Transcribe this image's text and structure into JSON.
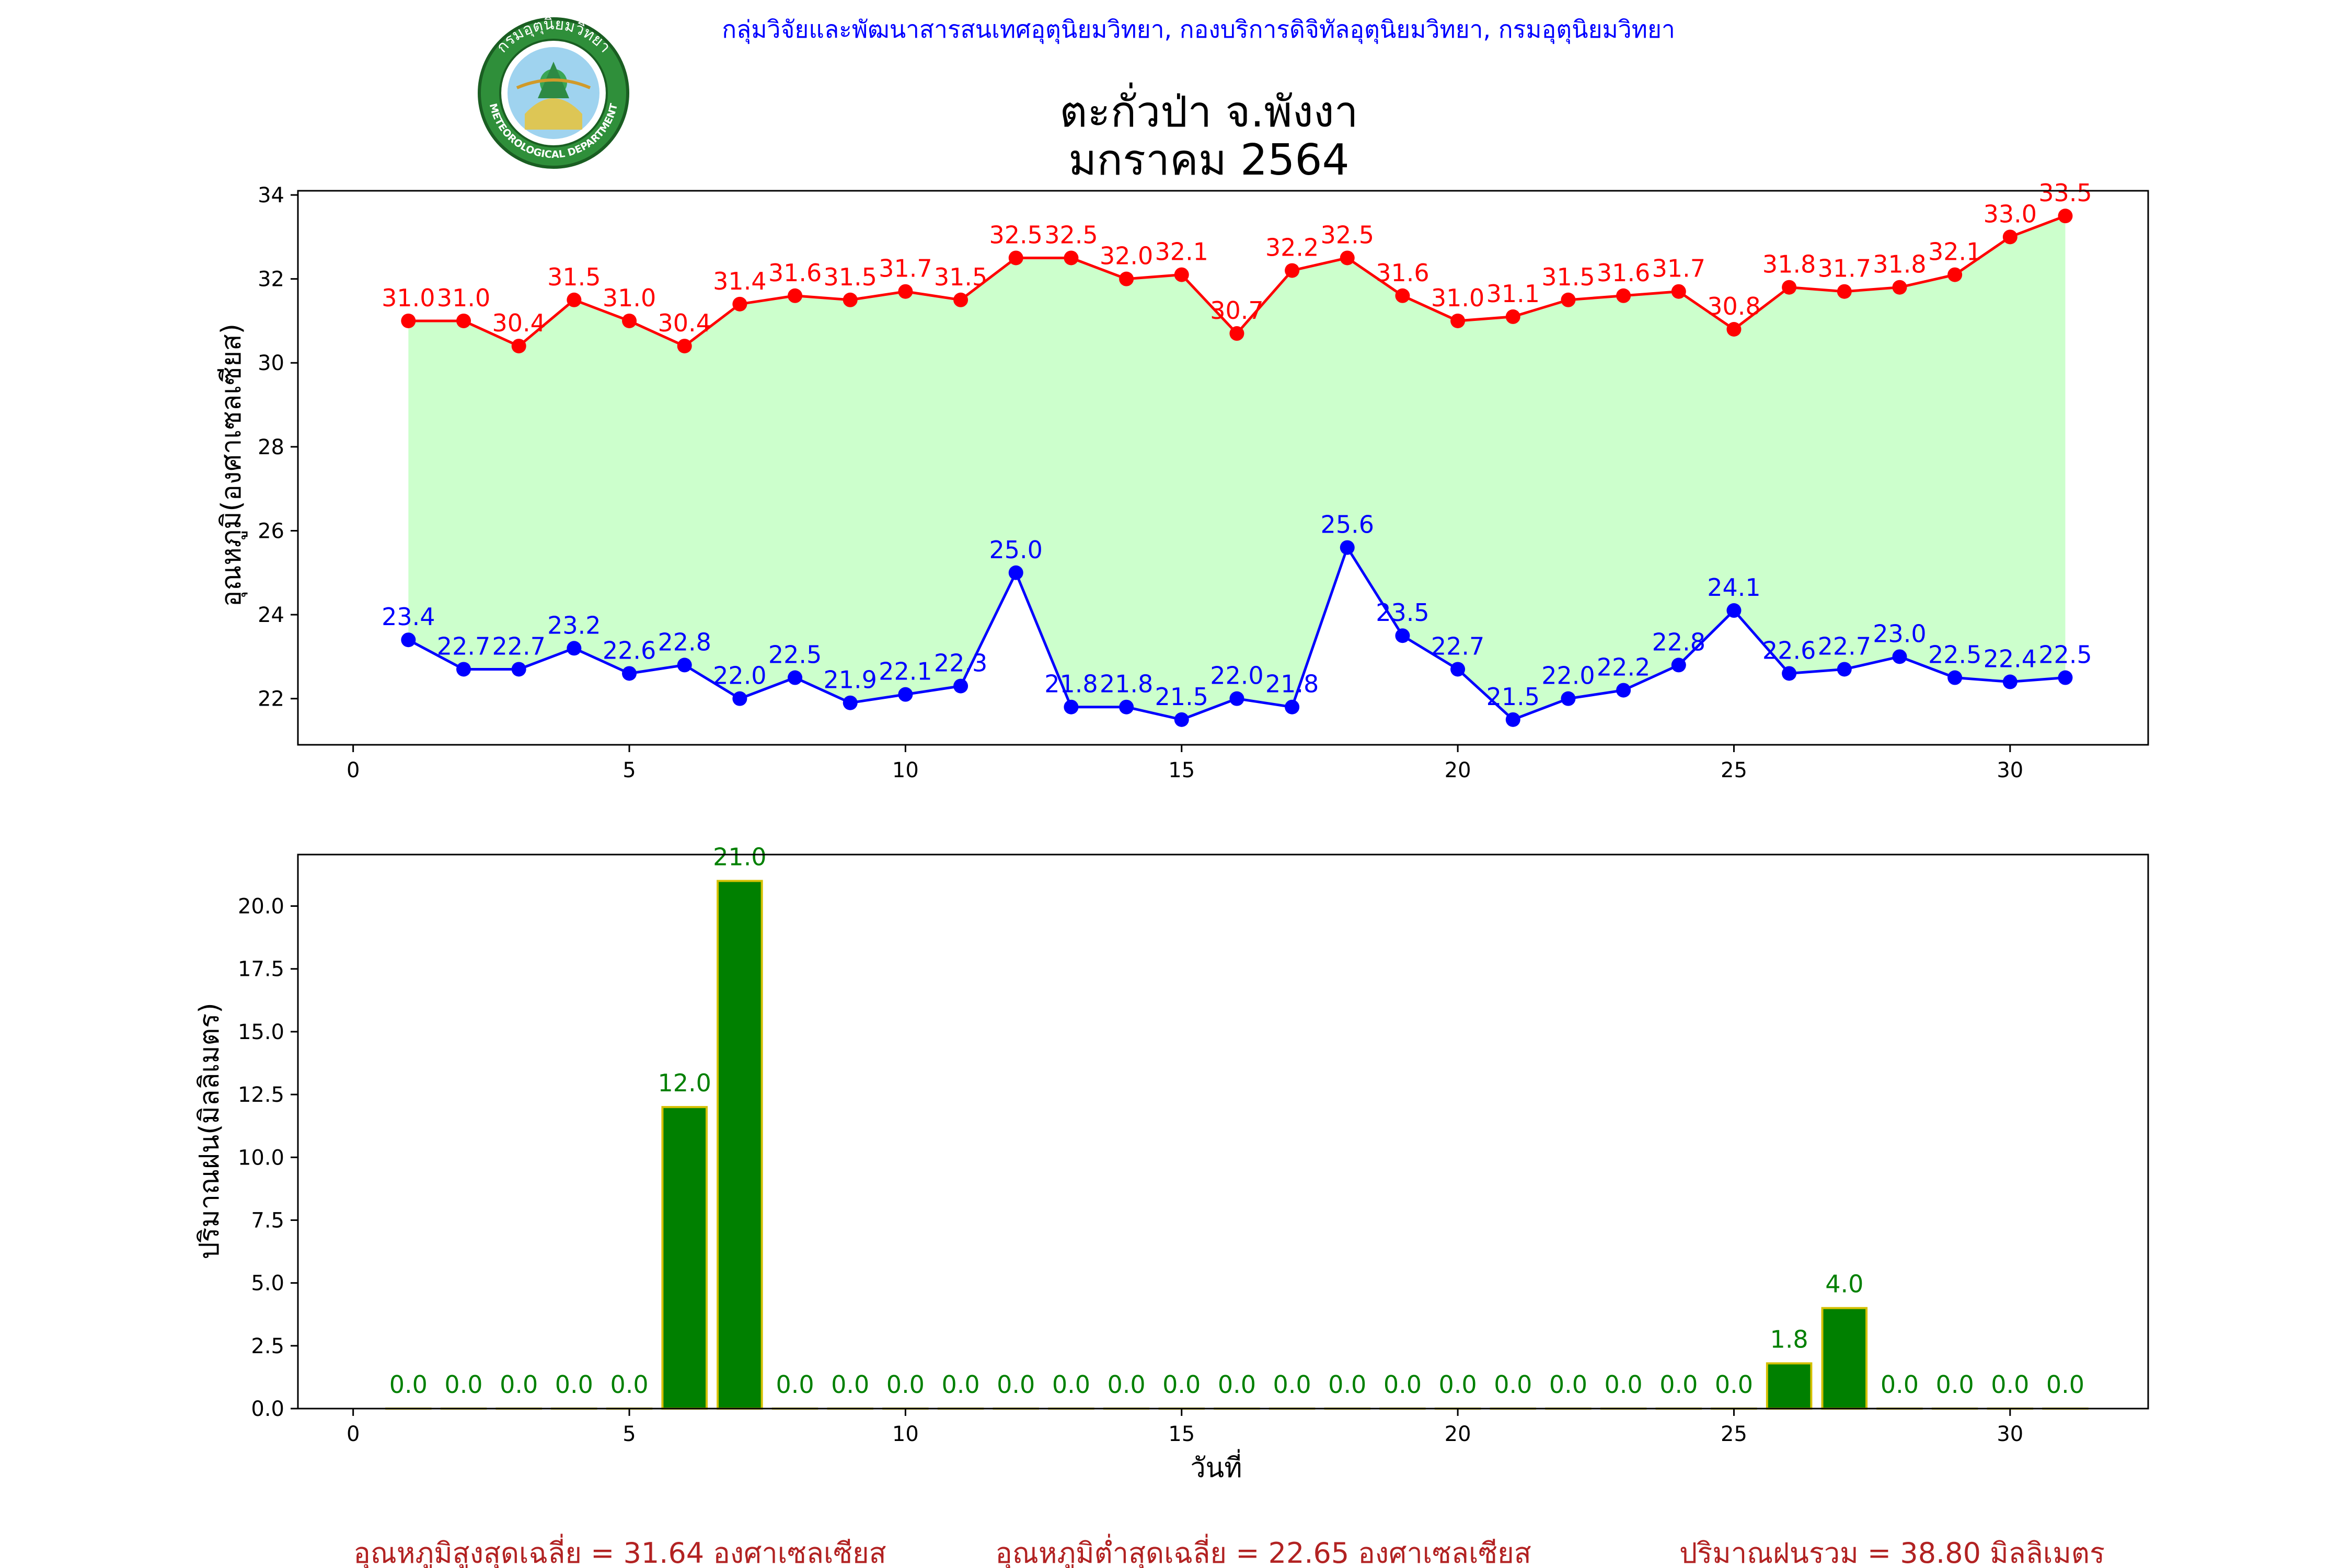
{
  "header": {
    "organization": "กลุ่มวิจัยและพัฒนาสารสนเทศอุตุนิยมวิทยา, กองบริการดิจิทัลอุตุนิยมวิทยา, กรมอุตุนิยมวิทยา",
    "station": "ตะกั่วป่า จ.พังงา",
    "period": "มกราคม 2564",
    "logo": {
      "top_text": "กรมอุตุนิยมวิทยา",
      "bottom_text": "METEOROLOGICAL DEPARTMENT"
    }
  },
  "colors": {
    "max": "#ff0000",
    "min": "#0000ff",
    "fill": "#ccffcc",
    "rain": "#008000",
    "rain_edge": "#d4c000",
    "header": "#0000ff",
    "summary": "#b22222"
  },
  "chart_data": [
    {
      "type": "line",
      "ylabel": "อุณหภูมิ(องศาเซลเซียส)",
      "xlim": [
        -1,
        32.5
      ],
      "ylim": [
        20.9,
        34.1
      ],
      "xticks": [
        0,
        5,
        10,
        15,
        20,
        25,
        30
      ],
      "yticks": [
        22,
        24,
        26,
        28,
        30,
        32,
        34
      ],
      "x": [
        1,
        2,
        3,
        4,
        5,
        6,
        7,
        8,
        9,
        10,
        11,
        12,
        13,
        14,
        15,
        16,
        17,
        18,
        19,
        20,
        21,
        22,
        23,
        24,
        25,
        26,
        27,
        28,
        29,
        30,
        31
      ],
      "series": [
        {
          "key": "max",
          "values": [
            31.0,
            31.0,
            30.4,
            31.5,
            31.0,
            30.4,
            31.4,
            31.6,
            31.5,
            31.7,
            31.5,
            32.5,
            32.5,
            32.0,
            32.1,
            30.7,
            32.2,
            32.5,
            31.6,
            31.0,
            31.1,
            31.5,
            31.6,
            31.7,
            30.8,
            31.8,
            31.7,
            31.8,
            32.1,
            33.0,
            33.5
          ]
        },
        {
          "key": "min",
          "values": [
            23.4,
            22.7,
            22.7,
            23.2,
            22.6,
            22.8,
            22.0,
            22.5,
            21.9,
            22.1,
            22.3,
            25.0,
            21.8,
            21.8,
            21.5,
            22.0,
            21.8,
            25.6,
            23.5,
            22.7,
            21.5,
            22.0,
            22.2,
            22.8,
            24.1,
            22.6,
            22.7,
            23.0,
            22.5,
            22.4,
            22.5
          ]
        }
      ]
    },
    {
      "type": "bar",
      "ylabel": "ปริมาณฝน(มิลลิเมตร)",
      "xlabel": "วันที่",
      "xlim": [
        -1,
        32.5
      ],
      "ylim": [
        0,
        22.05
      ],
      "xticks": [
        0,
        5,
        10,
        15,
        20,
        25,
        30
      ],
      "yticks": [
        "0.0",
        "2.5",
        "5.0",
        "7.5",
        "10.0",
        "12.5",
        "15.0",
        "17.5",
        "20.0"
      ],
      "x": [
        1,
        2,
        3,
        4,
        5,
        6,
        7,
        8,
        9,
        10,
        11,
        12,
        13,
        14,
        15,
        16,
        17,
        18,
        19,
        20,
        21,
        22,
        23,
        24,
        25,
        26,
        27,
        28,
        29,
        30,
        31
      ],
      "values": [
        0.0,
        0.0,
        0.0,
        0.0,
        0.0,
        12.0,
        21.0,
        0.0,
        0.0,
        0.0,
        0.0,
        0.0,
        0.0,
        0.0,
        0.0,
        0.0,
        0.0,
        0.0,
        0.0,
        0.0,
        0.0,
        0.0,
        0.0,
        0.0,
        0.0,
        1.8,
        4.0,
        0.0,
        0.0,
        0.0,
        0.0
      ]
    }
  ],
  "summary": {
    "avg_max": "อุณหภูมิสูงสุดเฉลี่ย = 31.64 องศาเซลเซียส",
    "avg_min": "อุณหภูมิต่ำสุดเฉลี่ย = 22.65 องศาเซลเซียส",
    "total_rain": "ปริมาณฝนรวม = 38.80 มิลลิเมตร"
  }
}
